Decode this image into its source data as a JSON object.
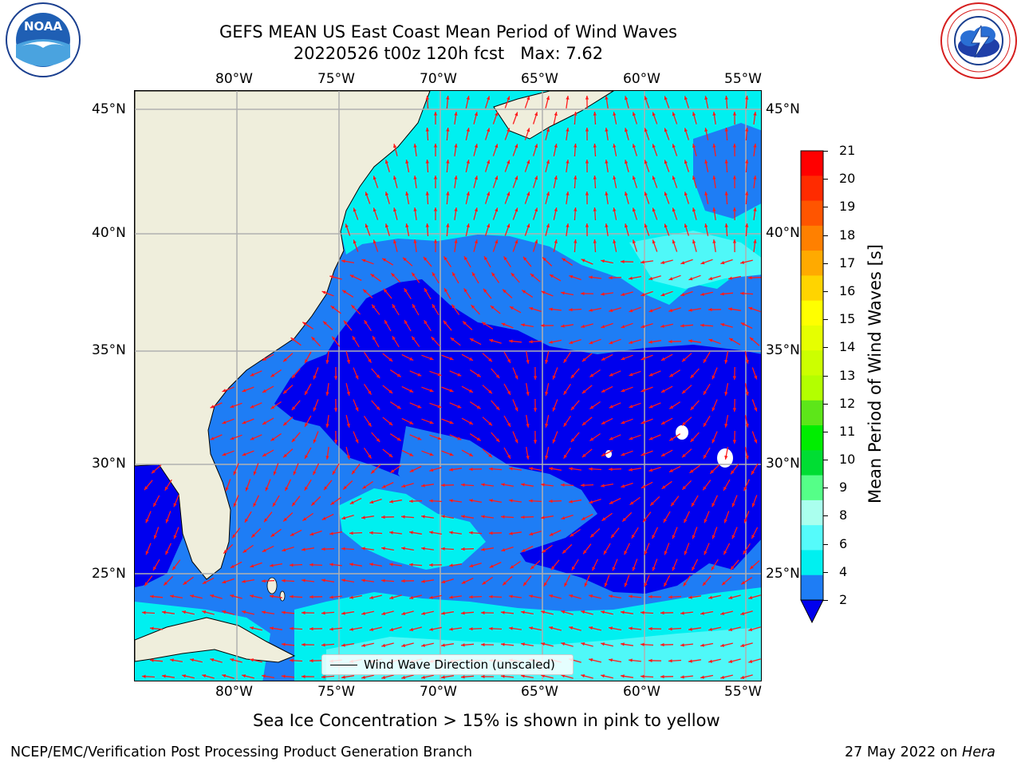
{
  "header": {
    "title_line1": "GEFS MEAN US East Coast Mean Period of Wind Waves",
    "title_line2": "20220526 t00z 120h fcst   Max: 7.62"
  },
  "logos": {
    "left": {
      "name": "noaa-logo",
      "text": "NOAA",
      "ring_text": "NATIONAL OCEANIC AND ATMOSPHERIC ADMINISTRATION · U.S. DEPARTMENT OF COMMERCE"
    },
    "right": {
      "name": "nws-logo",
      "ring_text": "NATIONAL WEATHER SERVICE"
    }
  },
  "map": {
    "lon_labels": [
      "80°W",
      "75°W",
      "70°W",
      "65°W",
      "60°W",
      "55°W"
    ],
    "lat_labels": [
      "45°N",
      "40°N",
      "35°N",
      "30°N",
      "25°N"
    ],
    "legend_label": "Wind Wave Direction (unscaled)",
    "colors": {
      "land": "#efeedc",
      "very_low": "#0000ee",
      "low": "#1e7df5",
      "mid": "#00f0f0",
      "mid_light": "#4ff8f8",
      "arrow": "#ff1a1a",
      "grid": "#b0b0b0"
    }
  },
  "colorbar": {
    "label": "Mean Period of Wind Waves [s]",
    "ticks": [
      "21",
      "20",
      "19",
      "18",
      "17",
      "16",
      "15",
      "14",
      "13",
      "12",
      "11",
      "10",
      "9",
      "8",
      "6",
      "4",
      "2"
    ],
    "colors_top_to_bottom": [
      "#ff0000",
      "#ff2b00",
      "#ff5500",
      "#ff8000",
      "#ffaa00",
      "#ffd400",
      "#ffff00",
      "#e6ff00",
      "#ccff00",
      "#b3ff00",
      "#5de619",
      "#00ee00",
      "#00dd33",
      "#55ff88",
      "#aaffee",
      "#55fbfb",
      "#00f0f0",
      "#1e7df5"
    ],
    "extend_color": "#0000ee"
  },
  "footer": {
    "ice_note": "Sea Ice Concentration > 15% is shown in pink to yellow",
    "branch": "NCEP/EMC/Verification Post Processing Product Generation Branch",
    "date": "27 May 2022 on ",
    "machine": "Hera"
  }
}
